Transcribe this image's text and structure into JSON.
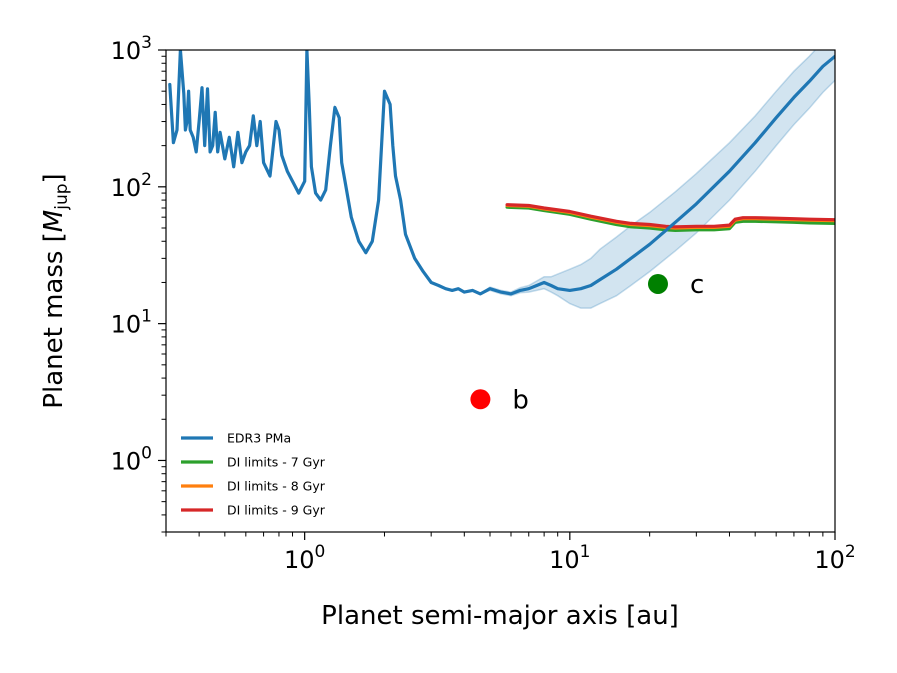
{
  "chart_data": {
    "type": "line",
    "xlabel": "Planet semi-major axis [au]",
    "ylabel": "Planet mass [M_jup]",
    "ylabel_main": "Planet mass [",
    "ylabel_sym": "M",
    "ylabel_sub": "jup",
    "ylabel_close": "]",
    "xscale": "log",
    "yscale": "log",
    "xlim": [
      0.3,
      100
    ],
    "ylim": [
      0.3,
      1000
    ],
    "x_ticks": [
      {
        "value": 1,
        "base": "10",
        "exp": "0"
      },
      {
        "value": 10,
        "base": "10",
        "exp": "1"
      },
      {
        "value": 100,
        "base": "10",
        "exp": "2"
      }
    ],
    "y_ticks": [
      {
        "value": 1,
        "base": "10",
        "exp": "0"
      },
      {
        "value": 10,
        "base": "10",
        "exp": "1"
      },
      {
        "value": 100,
        "base": "10",
        "exp": "2"
      },
      {
        "value": 1000,
        "base": "10",
        "exp": "3"
      }
    ],
    "legend_position": "lower-left",
    "series": [
      {
        "name": "EDR3 PMa",
        "color": "#1f77b4",
        "x": [
          0.31,
          0.32,
          0.33,
          0.34,
          0.35,
          0.355,
          0.36,
          0.365,
          0.37,
          0.38,
          0.39,
          0.4,
          0.41,
          0.42,
          0.43,
          0.44,
          0.45,
          0.46,
          0.47,
          0.48,
          0.5,
          0.52,
          0.54,
          0.56,
          0.58,
          0.6,
          0.62,
          0.64,
          0.66,
          0.68,
          0.7,
          0.74,
          0.78,
          0.8,
          0.82,
          0.86,
          0.9,
          0.95,
          1.0,
          1.02,
          1.04,
          1.06,
          1.1,
          1.15,
          1.2,
          1.25,
          1.3,
          1.35,
          1.38,
          1.42,
          1.5,
          1.6,
          1.7,
          1.8,
          1.9,
          2.0,
          2.1,
          2.15,
          2.2,
          2.3,
          2.4,
          2.6,
          2.8,
          3.0,
          3.2,
          3.4,
          3.6,
          3.8,
          4.0,
          4.3,
          4.6,
          5.0,
          5.5,
          6.0,
          6.5,
          7.0,
          7.5,
          8.0,
          8.5,
          9.0,
          10.0,
          11.0,
          12.0,
          13.0,
          15.0,
          17.0,
          20.0,
          25.0,
          30.0,
          40.0,
          50.0,
          60.0,
          70.0,
          80.0,
          90.0,
          100.0
        ],
        "y": [
          560,
          210,
          260,
          1000,
          480,
          260,
          300,
          500,
          260,
          230,
          180,
          300,
          530,
          200,
          520,
          180,
          200,
          350,
          180,
          250,
          160,
          230,
          140,
          250,
          150,
          180,
          200,
          330,
          200,
          300,
          150,
          120,
          300,
          260,
          170,
          130,
          110,
          90,
          110,
          1000,
          400,
          140,
          90,
          80,
          95,
          200,
          380,
          320,
          150,
          110,
          60,
          40,
          33,
          40,
          80,
          500,
          400,
          200,
          120,
          80,
          45,
          30,
          24,
          20,
          19,
          18,
          17.5,
          18,
          17,
          17.5,
          16.5,
          18,
          17,
          16.5,
          17.5,
          18,
          19,
          20,
          19,
          18,
          17.5,
          18,
          19,
          21,
          25,
          30,
          38,
          55,
          75,
          130,
          210,
          320,
          450,
          590,
          760,
          900
        ],
        "band_lo": [
          560,
          210,
          260,
          1000,
          480,
          260,
          300,
          500,
          260,
          230,
          180,
          300,
          530,
          200,
          520,
          180,
          200,
          350,
          180,
          250,
          160,
          230,
          140,
          250,
          150,
          180,
          200,
          330,
          200,
          300,
          150,
          120,
          300,
          260,
          170,
          130,
          110,
          90,
          110,
          1000,
          400,
          140,
          90,
          80,
          95,
          200,
          380,
          320,
          150,
          110,
          60,
          40,
          33,
          40,
          80,
          500,
          400,
          200,
          120,
          80,
          45,
          30,
          24,
          20,
          19,
          18,
          17.5,
          18,
          17,
          17.5,
          16.5,
          17.5,
          16.5,
          16,
          16.8,
          17,
          17.5,
          18,
          17,
          16,
          14,
          13,
          13,
          14,
          16,
          19,
          24,
          34,
          46,
          80,
          130,
          200,
          285,
          375,
          490,
          600
        ],
        "band_hi": [
          560,
          210,
          260,
          1000,
          480,
          260,
          300,
          500,
          260,
          230,
          180,
          300,
          530,
          200,
          520,
          180,
          200,
          350,
          180,
          250,
          160,
          230,
          140,
          250,
          150,
          180,
          200,
          330,
          200,
          300,
          150,
          120,
          300,
          260,
          170,
          130,
          110,
          90,
          110,
          1000,
          400,
          140,
          90,
          80,
          95,
          200,
          380,
          320,
          150,
          110,
          60,
          40,
          33,
          40,
          80,
          500,
          400,
          200,
          120,
          80,
          45,
          30,
          24,
          20,
          19,
          18,
          17.5,
          18,
          17,
          17.5,
          16.5,
          18.5,
          17.5,
          17,
          18.3,
          19,
          20.5,
          22,
          22,
          23,
          25,
          27,
          30,
          35,
          43,
          52,
          65,
          92,
          125,
          210,
          330,
          500,
          700,
          900,
          1150,
          1400
        ]
      },
      {
        "name": "DI limits - 7 Gyr",
        "color": "#2ca02c",
        "x": [
          5.8,
          7,
          8,
          10,
          12,
          15,
          17,
          20,
          23,
          25,
          30,
          35,
          40,
          42,
          45,
          50,
          60,
          70,
          80,
          100
        ],
        "y": [
          71,
          70,
          67,
          63,
          58,
          53,
          51,
          50,
          48.5,
          48,
          48.5,
          48.5,
          49.5,
          55,
          56,
          56,
          55.5,
          55,
          54.5,
          54
        ]
      },
      {
        "name": "DI limits - 8 Gyr",
        "color": "#ff7f0e",
        "x": [
          5.8,
          7,
          8,
          10,
          12,
          15,
          17,
          20,
          23,
          25,
          30,
          35,
          40,
          42,
          45,
          50,
          60,
          70,
          80,
          100
        ],
        "y": [
          73,
          72,
          69,
          65,
          60,
          55,
          53,
          52,
          50.5,
          50,
          50.5,
          50.5,
          51.5,
          57,
          58.5,
          58.5,
          58,
          57.5,
          57,
          56.5
        ]
      },
      {
        "name": "DI limits - 9 Gyr",
        "color": "#d62728",
        "x": [
          5.8,
          7,
          8,
          10,
          12,
          15,
          17,
          20,
          23,
          25,
          30,
          35,
          40,
          42,
          45,
          50,
          60,
          70,
          80,
          100
        ],
        "y": [
          74,
          73,
          70,
          66,
          61,
          56,
          54,
          53,
          51.5,
          51,
          51.5,
          51.5,
          52.5,
          58,
          59.5,
          59.5,
          59,
          58.5,
          58,
          57.5
        ]
      }
    ],
    "points": [
      {
        "label": "b",
        "x": 4.6,
        "y": 2.8,
        "color": "#ff0000"
      },
      {
        "label": "c",
        "x": 21.5,
        "y": 19.5,
        "color": "#008000"
      }
    ]
  }
}
